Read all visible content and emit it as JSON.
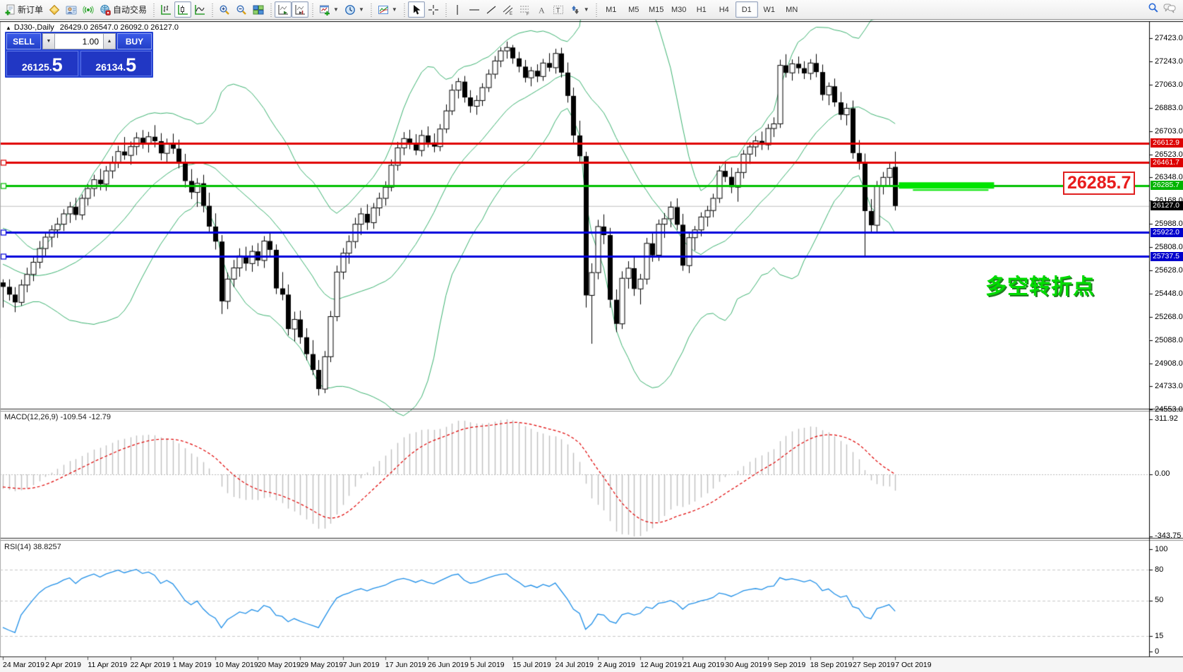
{
  "toolbar": {
    "new_order_label": "新订单",
    "auto_trading_label": "自动交易",
    "timeframes": [
      "M1",
      "M5",
      "M15",
      "M30",
      "H1",
      "H4",
      "D1",
      "W1",
      "MN"
    ],
    "active_timeframe": "D1"
  },
  "header": {
    "collapse_glyph": "▲",
    "symbol": "DJ30-,Daily",
    "ohlc_line": "26429.0 26547.0 26092.0 26127.0"
  },
  "trade_panel": {
    "sell_label": "SELL",
    "buy_label": "BUY",
    "volume": "1.00",
    "spin_down_glyph": "▼",
    "spin_up_glyph": "▲",
    "sell_price_main": "26125.",
    "sell_price_big": "5",
    "buy_price_main": "26134.",
    "buy_price_big": "5"
  },
  "panes": {
    "macd_label": "MACD(12,26,9) -109.54 -12.79",
    "rsi_label": "RSI(14) 38.8257"
  },
  "callout_text": "26285.7",
  "annotation_text": "多空转折点",
  "chart_data": {
    "type": "candlestick",
    "symbol": "DJ30-",
    "timeframe": "Daily",
    "last_bar_ohlc": {
      "open": 26429.0,
      "high": 26547.0,
      "low": 26092.0,
      "close": 26127.0
    },
    "current_price": 26127.0,
    "bid": 26125.5,
    "ask": 26134.5,
    "y_ticks": [
      "27423.0",
      "27243.0",
      "27063.0",
      "26883.0",
      "26703.0",
      "26523.0",
      "26348.0",
      "26168.0",
      "25988.0",
      "25808.0",
      "25628.0",
      "25448.0",
      "25268.0",
      "25088.0",
      "24908.0",
      "24733.0",
      "24553.0"
    ],
    "y_tick_values": [
      27423,
      27243,
      27063,
      26883,
      26703,
      26523,
      26348,
      26168,
      25988,
      25808,
      25628,
      25448,
      25268,
      25088,
      24908,
      24733,
      24553
    ],
    "x_labels": [
      "24 Mar 2019",
      "2 Apr 2019",
      "11 Apr 2019",
      "22 Apr 2019",
      "1 May 2019",
      "10 May 2019",
      "20 May 2019",
      "29 May 2019",
      "7 Jun 2019",
      "17 Jun 2019",
      "26 Jun 2019",
      "5 Jul 2019",
      "15 Jul 2019",
      "24 Jul 2019",
      "2 Aug 2019",
      "12 Aug 2019",
      "21 Aug 2019",
      "30 Aug 2019",
      "9 Sep 2019",
      "18 Sep 2019",
      "27 Sep 2019",
      "7 Oct 2019"
    ],
    "x_label_bar_indices": [
      0,
      7,
      14,
      21,
      28,
      35,
      42,
      49,
      56,
      63,
      70,
      77,
      84,
      91,
      98,
      105,
      112,
      119,
      126,
      133,
      140,
      147
    ],
    "horizontal_lines": [
      {
        "price": 26612.9,
        "color": "#e00000",
        "width": 3,
        "left_marker": false,
        "tag": "26612.9",
        "tag_color": "#dd0000"
      },
      {
        "price": 26461.7,
        "color": "#e00000",
        "width": 3,
        "left_marker": true,
        "tag": "26461.7",
        "tag_color": "#dd0000"
      },
      {
        "price": 26285.7,
        "color": "#00c000",
        "width": 3,
        "left_marker": true,
        "tag": "26285.7",
        "tag_color": "#00b400"
      },
      {
        "price": 25922.0,
        "color": "#0000dc",
        "width": 3,
        "left_marker": true,
        "tag": "25922.0",
        "tag_color": "#0000cc"
      },
      {
        "price": 25737.5,
        "color": "#0000dc",
        "width": 3,
        "left_marker": true,
        "tag": "25737.5",
        "tag_color": "#0000cc"
      }
    ],
    "current_price_tag": {
      "text": "26127.0",
      "bg": "#000000"
    },
    "highlight_segment": {
      "price": 26285.7,
      "x1_bar": 147.6,
      "x2_bar": 163.3,
      "color": "#00e400",
      "thickness": 9
    },
    "bollinger": {
      "period": 20,
      "deviation": 2,
      "color": "#3cb371"
    },
    "macd": {
      "fast": 12,
      "slow": 26,
      "signal": 9,
      "value": -109.54,
      "signal_value": -12.79,
      "axis_labels": [
        "311.92",
        "0.00",
        "-343.75"
      ],
      "hist_color": "#bfbfbf",
      "signal_color": "#e00000"
    },
    "rsi": {
      "period": 14,
      "value": 38.8257,
      "levels": [
        80,
        50,
        15
      ],
      "axis_labels": [
        "100",
        "80",
        "50",
        "15",
        "0"
      ],
      "axis_values": [
        100,
        80,
        50,
        15,
        0
      ],
      "line_color": "#1f8fe8"
    },
    "pre_closes": [
      25862,
      25890,
      25914,
      25880,
      25836,
      25798,
      25760,
      25720,
      25684,
      25650,
      25618,
      25590,
      25560,
      25520,
      25556,
      25530,
      25564,
      25538,
      25570
    ],
    "candles": [
      [
        25536,
        25560,
        25342,
        25502
      ],
      [
        25502,
        25560,
        25396,
        25442
      ],
      [
        25442,
        25500,
        25306,
        25382
      ],
      [
        25382,
        25558,
        25356,
        25516
      ],
      [
        25516,
        25650,
        25460,
        25598
      ],
      [
        25598,
        25744,
        25546,
        25692
      ],
      [
        25692,
        25856,
        25644,
        25798
      ],
      [
        25798,
        25928,
        25740,
        25886
      ],
      [
        25886,
        25978,
        25808,
        25942
      ],
      [
        25942,
        26036,
        25880,
        25986
      ],
      [
        25986,
        26102,
        25934,
        26066
      ],
      [
        26066,
        26158,
        25996,
        26120
      ],
      [
        26120,
        26190,
        26018,
        26058
      ],
      [
        26058,
        26216,
        26020,
        26186
      ],
      [
        26186,
        26296,
        26130,
        26262
      ],
      [
        26262,
        26368,
        26200,
        26330
      ],
      [
        26330,
        26414,
        26248,
        26296
      ],
      [
        26296,
        26436,
        26244,
        26398
      ],
      [
        26398,
        26512,
        26340,
        26466
      ],
      [
        26466,
        26592,
        26420,
        26548
      ],
      [
        26548,
        26660,
        26484,
        26518
      ],
      [
        26518,
        26626,
        26446,
        26586
      ],
      [
        26586,
        26696,
        26520,
        26654
      ],
      [
        26654,
        26714,
        26570,
        26610
      ],
      [
        26610,
        26700,
        26540,
        26662
      ],
      [
        26662,
        26752,
        26580,
        26628
      ],
      [
        26628,
        26690,
        26480,
        26534
      ],
      [
        26534,
        26648,
        26460,
        26612
      ],
      [
        26612,
        26686,
        26530,
        26570
      ],
      [
        26570,
        26640,
        26418,
        26462
      ],
      [
        26462,
        26530,
        26270,
        26320
      ],
      [
        26320,
        26412,
        26180,
        26232
      ],
      [
        26232,
        26342,
        26120,
        26302
      ],
      [
        26302,
        26368,
        26078,
        26128
      ],
      [
        26128,
        26230,
        25920,
        25968
      ],
      [
        25968,
        26070,
        25790,
        25852
      ],
      [
        25852,
        25902,
        25292,
        25390
      ],
      [
        25390,
        25612,
        25330,
        25562
      ],
      [
        25562,
        25710,
        25500,
        25648
      ],
      [
        25648,
        25800,
        25580,
        25742
      ],
      [
        25742,
        25812,
        25626,
        25682
      ],
      [
        25682,
        25822,
        25618,
        25776
      ],
      [
        25776,
        25840,
        25662,
        25706
      ],
      [
        25706,
        25894,
        25648,
        25856
      ],
      [
        25856,
        25918,
        25740,
        25788
      ],
      [
        25788,
        25830,
        25446,
        25490
      ],
      [
        25490,
        25616,
        25398,
        25442
      ],
      [
        25442,
        25520,
        25126,
        25176
      ],
      [
        25176,
        25310,
        25080,
        25250
      ],
      [
        25250,
        25318,
        25062,
        25112
      ],
      [
        25112,
        25182,
        24934,
        24982
      ],
      [
        24982,
        25090,
        24820,
        24860
      ],
      [
        24860,
        24936,
        24662,
        24712
      ],
      [
        24712,
        25006,
        24680,
        24962
      ],
      [
        24962,
        25316,
        24920,
        25272
      ],
      [
        25272,
        25666,
        25236,
        25616
      ],
      [
        25616,
        25802,
        25560,
        25762
      ],
      [
        25762,
        25900,
        25680,
        25852
      ],
      [
        25852,
        26036,
        25800,
        25986
      ],
      [
        25986,
        26112,
        25902,
        26066
      ],
      [
        26066,
        26140,
        25942,
        25998
      ],
      [
        25998,
        26150,
        25950,
        26112
      ],
      [
        26112,
        26230,
        26050,
        26186
      ],
      [
        26186,
        26318,
        26130,
        26272
      ],
      [
        26272,
        26486,
        26240,
        26442
      ],
      [
        26442,
        26622,
        26400,
        26576
      ],
      [
        26576,
        26698,
        26520,
        26648
      ],
      [
        26648,
        26716,
        26566,
        26612
      ],
      [
        26612,
        26682,
        26520,
        26556
      ],
      [
        26556,
        26714,
        26510,
        26672
      ],
      [
        26672,
        26742,
        26580,
        26618
      ],
      [
        26618,
        26688,
        26542,
        26586
      ],
      [
        26586,
        26760,
        26550,
        26722
      ],
      [
        26722,
        26912,
        26690,
        26862
      ],
      [
        26862,
        27068,
        26830,
        27022
      ],
      [
        27022,
        27116,
        26958,
        27088
      ],
      [
        27088,
        27132,
        26926,
        26966
      ],
      [
        26966,
        27022,
        26848,
        26898
      ],
      [
        26898,
        26982,
        26832,
        26942
      ],
      [
        26942,
        27076,
        26900,
        27042
      ],
      [
        27042,
        27182,
        27008,
        27146
      ],
      [
        27146,
        27286,
        27110,
        27248
      ],
      [
        27248,
        27354,
        27200,
        27326
      ],
      [
        27326,
        27398,
        27266,
        27352
      ],
      [
        27352,
        27372,
        27226,
        27268
      ],
      [
        27268,
        27318,
        27160,
        27204
      ],
      [
        27204,
        27256,
        27082,
        27118
      ],
      [
        27118,
        27202,
        27052,
        27172
      ],
      [
        27172,
        27222,
        27084,
        27128
      ],
      [
        27128,
        27264,
        27094,
        27232
      ],
      [
        27232,
        27308,
        27166,
        27196
      ],
      [
        27196,
        27342,
        27150,
        27306
      ],
      [
        27306,
        27350,
        27120,
        27158
      ],
      [
        27158,
        27236,
        26926,
        26978
      ],
      [
        26978,
        27042,
        26604,
        26672
      ],
      [
        26672,
        26786,
        26454,
        26512
      ],
      [
        26512,
        26546,
        25342,
        25436
      ],
      [
        25436,
        25684,
        25062,
        25612
      ],
      [
        25612,
        26020,
        25560,
        25968
      ],
      [
        25968,
        26062,
        25832,
        25902
      ],
      [
        25902,
        25958,
        25340,
        25402
      ],
      [
        25402,
        25482,
        25152,
        25216
      ],
      [
        25216,
        25622,
        25176,
        25568
      ],
      [
        25568,
        25700,
        25488,
        25646
      ],
      [
        25646,
        25730,
        25432,
        25486
      ],
      [
        25486,
        25602,
        25366,
        25562
      ],
      [
        25562,
        25880,
        25520,
        25838
      ],
      [
        25838,
        25918,
        25696,
        25746
      ],
      [
        25746,
        26022,
        25702,
        25986
      ],
      [
        25986,
        26072,
        25880,
        26028
      ],
      [
        26028,
        26162,
        25962,
        26118
      ],
      [
        26118,
        26186,
        25942,
        25982
      ],
      [
        25982,
        26066,
        25626,
        25666
      ],
      [
        25666,
        25926,
        25608,
        25882
      ],
      [
        25882,
        25972,
        25782,
        25942
      ],
      [
        25942,
        26078,
        25892,
        26042
      ],
      [
        26042,
        26128,
        25968,
        26092
      ],
      [
        26092,
        26222,
        26040,
        26186
      ],
      [
        26186,
        26438,
        26150,
        26398
      ],
      [
        26398,
        26472,
        26312,
        26352
      ],
      [
        26352,
        26424,
        26226,
        26272
      ],
      [
        26272,
        26420,
        26160,
        26386
      ],
      [
        26386,
        26560,
        26340,
        26528
      ],
      [
        26528,
        26620,
        26452,
        26584
      ],
      [
        26584,
        26668,
        26508,
        26630
      ],
      [
        26630,
        26702,
        26560,
        26600
      ],
      [
        26600,
        26760,
        26560,
        26726
      ],
      [
        26726,
        26812,
        26660,
        26762
      ],
      [
        26762,
        27258,
        26730,
        27214
      ],
      [
        27214,
        27300,
        27120,
        27156
      ],
      [
        27156,
        27260,
        27096,
        27226
      ],
      [
        27226,
        27282,
        27150,
        27192
      ],
      [
        27192,
        27246,
        27108,
        27152
      ],
      [
        27152,
        27262,
        27102,
        27232
      ],
      [
        27232,
        27302,
        27122,
        27162
      ],
      [
        27162,
        27220,
        26942,
        26986
      ],
      [
        26986,
        27082,
        26906,
        27052
      ],
      [
        27052,
        27112,
        26894,
        26928
      ],
      [
        26928,
        27008,
        26792,
        26832
      ],
      [
        26832,
        26920,
        26750,
        26882
      ],
      [
        26882,
        26942,
        26492,
        26536
      ],
      [
        26536,
        26636,
        26408,
        26464
      ],
      [
        26464,
        26532,
        25742,
        26088
      ],
      [
        26088,
        26180,
        25920,
        25978
      ],
      [
        25978,
        26320,
        25930,
        26286
      ],
      [
        26286,
        26390,
        26216,
        26348
      ],
      [
        26348,
        26470,
        26290,
        26418
      ],
      [
        26429,
        26547,
        26092,
        26127
      ]
    ]
  }
}
